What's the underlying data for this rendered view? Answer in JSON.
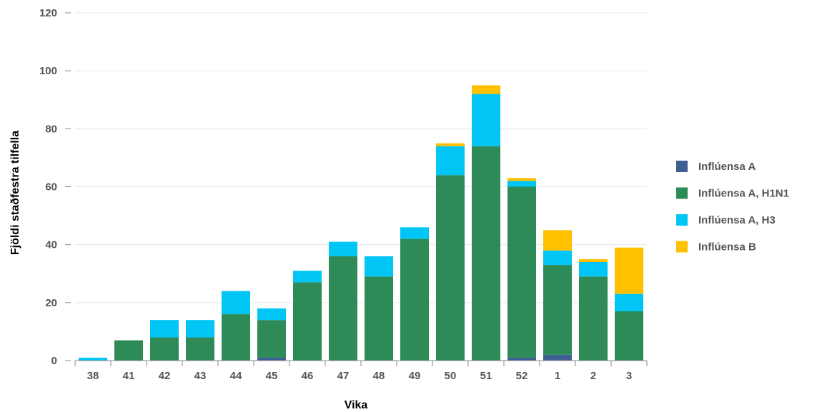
{
  "chart_data": {
    "type": "bar",
    "stacked": true,
    "title": "",
    "xlabel": "Vika",
    "ylabel": "Fjöldi staðfestra tilfella",
    "ylim": [
      0,
      120
    ],
    "yticks": [
      0,
      20,
      40,
      60,
      80,
      100,
      120
    ],
    "grid": true,
    "legend_position": "right",
    "categories": [
      "38",
      "41",
      "42",
      "43",
      "44",
      "45",
      "46",
      "47",
      "48",
      "49",
      "50",
      "51",
      "52",
      "1",
      "2",
      "3"
    ],
    "series": [
      {
        "name": "Inflúensa A",
        "color": "#3d5f94",
        "values": [
          0,
          0,
          0,
          0,
          0,
          1,
          0,
          0,
          0,
          0,
          0,
          0,
          1,
          2,
          0,
          0
        ]
      },
      {
        "name": "Inflúensa A, H1N1",
        "color": "#2e8b57",
        "values": [
          0,
          7,
          8,
          8,
          16,
          13,
          27,
          36,
          29,
          42,
          64,
          74,
          59,
          31,
          29,
          17
        ]
      },
      {
        "name": "Inflúensa A, H3",
        "color": "#00c5f5",
        "values": [
          1,
          0,
          6,
          6,
          8,
          4,
          4,
          5,
          7,
          4,
          10,
          18,
          2,
          5,
          5,
          6
        ]
      },
      {
        "name": "Inflúensa B",
        "color": "#ffc000",
        "values": [
          0,
          0,
          0,
          0,
          0,
          0,
          0,
          0,
          0,
          0,
          1,
          3,
          1,
          7,
          1,
          16
        ]
      }
    ]
  }
}
